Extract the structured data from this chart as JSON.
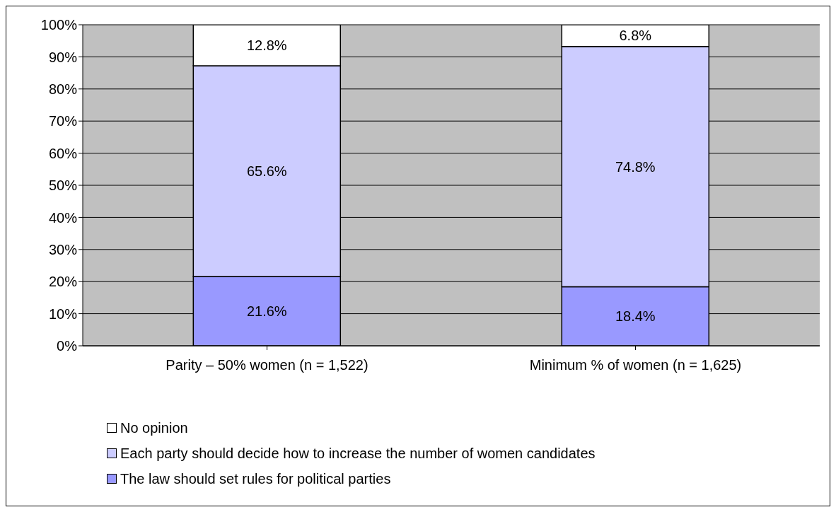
{
  "chart_data": {
    "type": "bar",
    "stacked": true,
    "categories": [
      "Parity – 50% women (n = 1,522)",
      "Minimum % of women (n = 1,625)"
    ],
    "series": [
      {
        "name": "The law should set rules for political parties",
        "color": "#9999ff",
        "values": [
          21.6,
          18.4
        ],
        "value_labels": [
          "21.6%",
          "18.4%"
        ]
      },
      {
        "name": "Each party should decide how to increase the number of women candidates",
        "color": "#ccccff",
        "values": [
          65.6,
          74.8
        ],
        "value_labels": [
          "65.6%",
          "74.8%"
        ]
      },
      {
        "name": "No opinion",
        "color": "#ffffff",
        "values": [
          12.8,
          6.8
        ],
        "value_labels": [
          "12.8%",
          "6.8%"
        ]
      }
    ],
    "ylim": [
      0,
      100
    ],
    "yticks": [
      {
        "value": 0,
        "label": "0%"
      },
      {
        "value": 10,
        "label": "10%"
      },
      {
        "value": 20,
        "label": "20%"
      },
      {
        "value": 30,
        "label": "30%"
      },
      {
        "value": 40,
        "label": "40%"
      },
      {
        "value": 50,
        "label": "50%"
      },
      {
        "value": 60,
        "label": "60%"
      },
      {
        "value": 70,
        "label": "70%"
      },
      {
        "value": 80,
        "label": "80%"
      },
      {
        "value": 90,
        "label": "90%"
      },
      {
        "value": 100,
        "label": "100%"
      }
    ],
    "grid": "y",
    "legend": "bottom left"
  }
}
